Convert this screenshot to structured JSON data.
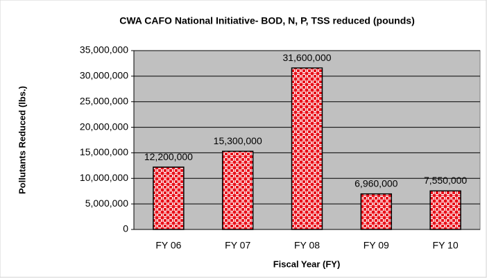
{
  "chart_data": {
    "type": "bar",
    "title": "CWA CAFO National Initiative- BOD, N, P, TSS reduced (pounds)",
    "x_label": "Fiscal Year (FY)",
    "y_label": "Pollutants Reduced (lbs.)",
    "categories": [
      "FY 06",
      "FY 07",
      "FY 08",
      "FY 09",
      "FY 10"
    ],
    "values": [
      12200000,
      15300000,
      31600000,
      6960000,
      7550000
    ],
    "value_labels": [
      "12,200,000",
      "15,300,000",
      "31,600,000",
      "6,960,000",
      "7,550,000"
    ],
    "color": "#e8101a",
    "ylim": [
      0,
      35000000
    ],
    "yticks": [
      0,
      {
        "value": 5000000,
        "label": "5,000,000"
      },
      {
        "value": 10000000,
        "label": "10,000,000"
      },
      {
        "value": 15000000,
        "label": "15,000,000"
      },
      {
        "value": 20000000,
        "label": "20,000,000"
      },
      {
        "value": 25000000,
        "label": "25,000,000"
      },
      {
        "value": 30000000,
        "label": "30,000,000"
      },
      {
        "value": 35000000,
        "label": "35,000,000"
      }
    ],
    "grid": true
  }
}
